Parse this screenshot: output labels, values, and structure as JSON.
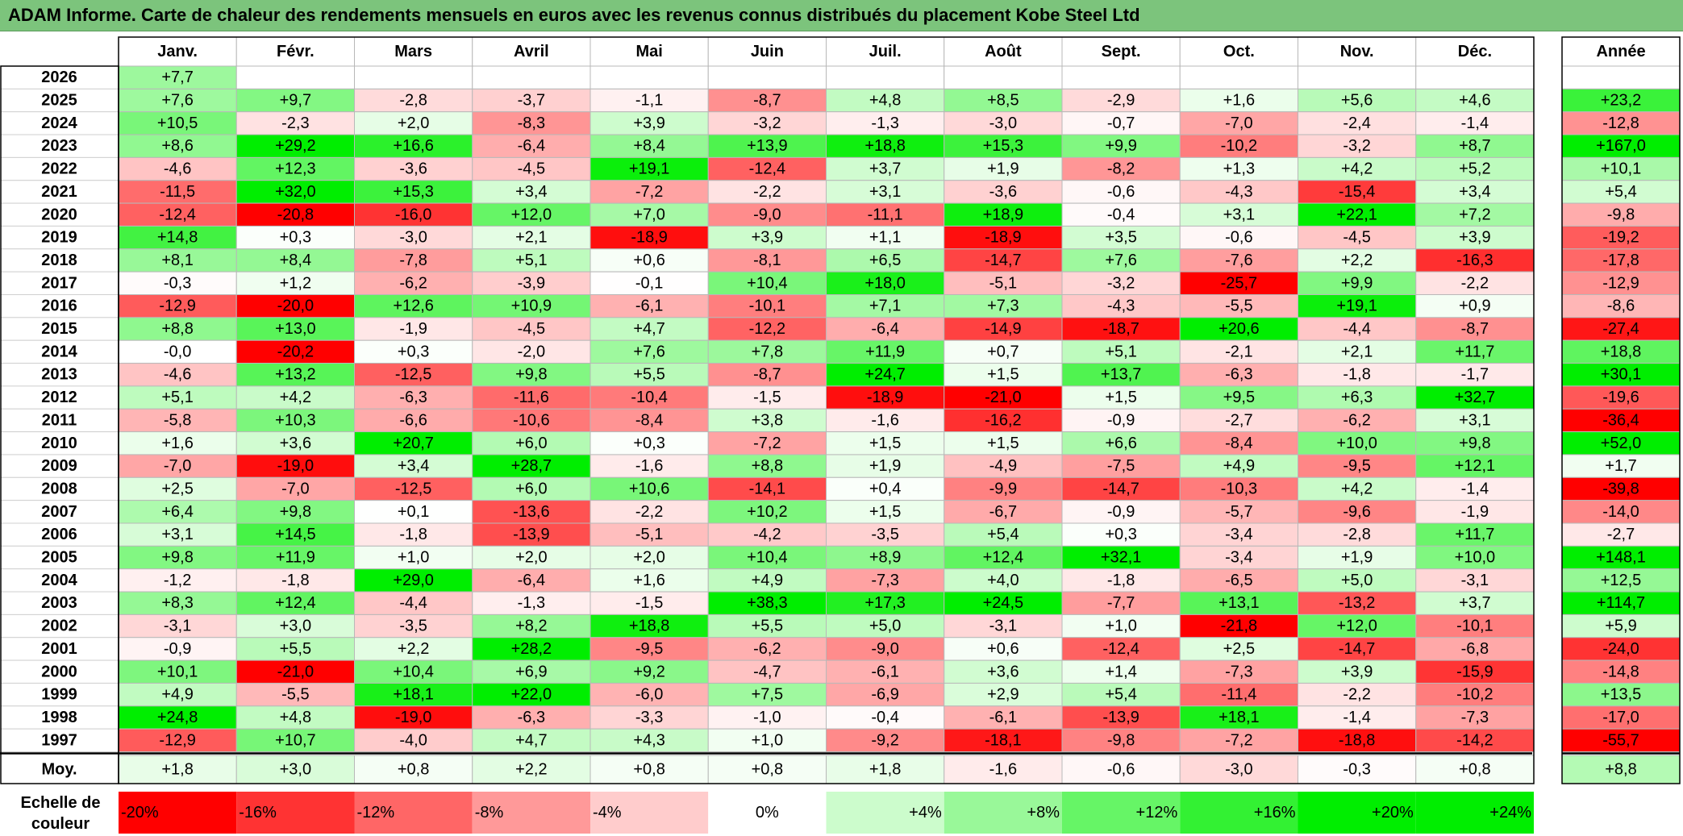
{
  "title": "ADAM Informe. Carte de chaleur des rendements mensuels en euros avec les revenus connus distribués du placement Kobe Steel Ltd",
  "chart_data": {
    "type": "heatmap",
    "title": "ADAM Informe. Carte de chaleur des rendements mensuels en euros avec les revenus connus distribués du placement Kobe Steel Ltd",
    "months": [
      "Janv.",
      "Févr.",
      "Mars",
      "Avril",
      "Mai",
      "Juin",
      "Juil.",
      "Août",
      "Sept.",
      "Oct.",
      "Nov.",
      "Déc."
    ],
    "year_header": "Année",
    "rows": [
      {
        "year": "2026",
        "values": [
          "+7,7",
          "",
          "",
          "",
          "",
          "",
          "",
          "",
          "",
          "",
          "",
          ""
        ],
        "annual": ""
      },
      {
        "year": "2025",
        "values": [
          "+7,6",
          "+9,7",
          "-2,8",
          "-3,7",
          "-1,1",
          "-8,7",
          "+4,8",
          "+8,5",
          "-2,9",
          "+1,6",
          "+5,6",
          "+4,6"
        ],
        "annual": "+23,2"
      },
      {
        "year": "2024",
        "values": [
          "+10,5",
          "-2,3",
          "+2,0",
          "-8,3",
          "+3,9",
          "-3,2",
          "-1,3",
          "-3,0",
          "-0,7",
          "-7,0",
          "-2,4",
          "-1,4"
        ],
        "annual": "-12,8"
      },
      {
        "year": "2023",
        "values": [
          "+8,6",
          "+29,2",
          "+16,6",
          "-6,4",
          "+8,4",
          "+13,9",
          "+18,8",
          "+15,3",
          "+9,9",
          "-10,2",
          "-3,2",
          "+8,7"
        ],
        "annual": "+167,0"
      },
      {
        "year": "2022",
        "values": [
          "-4,6",
          "+12,3",
          "-3,6",
          "-4,5",
          "+19,1",
          "-12,4",
          "+3,7",
          "+1,9",
          "-8,2",
          "+1,3",
          "+4,2",
          "+5,2"
        ],
        "annual": "+10,1"
      },
      {
        "year": "2021",
        "values": [
          "-11,5",
          "+32,0",
          "+15,3",
          "+3,4",
          "-7,2",
          "-2,2",
          "+3,1",
          "-3,6",
          "-0,6",
          "-4,3",
          "-15,4",
          "+3,4"
        ],
        "annual": "+5,4"
      },
      {
        "year": "2020",
        "values": [
          "-12,4",
          "-20,8",
          "-16,0",
          "+12,0",
          "+7,0",
          "-9,0",
          "-11,1",
          "+18,9",
          "-0,4",
          "+3,1",
          "+22,1",
          "+7,2"
        ],
        "annual": "-9,8"
      },
      {
        "year": "2019",
        "values": [
          "+14,8",
          "+0,3",
          "-3,0",
          "+2,1",
          "-18,9",
          "+3,9",
          "+1,1",
          "-18,9",
          "+3,5",
          "-0,6",
          "-4,5",
          "+3,9"
        ],
        "annual": "-19,2"
      },
      {
        "year": "2018",
        "values": [
          "+8,1",
          "+8,4",
          "-7,8",
          "+5,1",
          "+0,6",
          "-8,1",
          "+6,5",
          "-14,7",
          "+7,6",
          "-7,6",
          "+2,2",
          "-16,3"
        ],
        "annual": "-17,8"
      },
      {
        "year": "2017",
        "values": [
          "-0,3",
          "+1,2",
          "-6,2",
          "-3,9",
          "-0,1",
          "+10,4",
          "+18,0",
          "-5,1",
          "-3,2",
          "-25,7",
          "+9,9",
          "-2,2"
        ],
        "annual": "-12,9"
      },
      {
        "year": "2016",
        "values": [
          "-12,9",
          "-20,0",
          "+12,6",
          "+10,9",
          "-6,1",
          "-10,1",
          "+7,1",
          "+7,3",
          "-4,3",
          "-5,5",
          "+19,1",
          "+0,9"
        ],
        "annual": "-8,6"
      },
      {
        "year": "2015",
        "values": [
          "+8,8",
          "+13,0",
          "-1,9",
          "-4,5",
          "+4,7",
          "-12,2",
          "-6,4",
          "-14,9",
          "-18,7",
          "+20,6",
          "-4,4",
          "-8,7"
        ],
        "annual": "-27,4"
      },
      {
        "year": "2014",
        "values": [
          "-0,0",
          "-20,2",
          "+0,3",
          "-2,0",
          "+7,6",
          "+7,8",
          "+11,9",
          "+0,7",
          "+5,1",
          "-2,1",
          "+2,1",
          "+11,7"
        ],
        "annual": "+18,8"
      },
      {
        "year": "2013",
        "values": [
          "-4,6",
          "+13,2",
          "-12,5",
          "+9,8",
          "+5,5",
          "-8,7",
          "+24,7",
          "+1,5",
          "+13,7",
          "-6,3",
          "-1,8",
          "-1,7"
        ],
        "annual": "+30,1"
      },
      {
        "year": "2012",
        "values": [
          "+5,1",
          "+4,2",
          "-6,3",
          "-11,6",
          "-10,4",
          "-1,5",
          "-18,9",
          "-21,0",
          "+1,5",
          "+9,5",
          "+6,3",
          "+32,7"
        ],
        "annual": "-19,6"
      },
      {
        "year": "2011",
        "values": [
          "-5,8",
          "+10,3",
          "-6,6",
          "-10,6",
          "-8,4",
          "+3,8",
          "-1,6",
          "-16,2",
          "-0,9",
          "-2,7",
          "-6,2",
          "+3,1"
        ],
        "annual": "-36,4"
      },
      {
        "year": "2010",
        "values": [
          "+1,6",
          "+3,6",
          "+20,7",
          "+6,0",
          "+0,3",
          "-7,2",
          "+1,5",
          "+1,5",
          "+6,6",
          "-8,4",
          "+10,0",
          "+9,8"
        ],
        "annual": "+52,0"
      },
      {
        "year": "2009",
        "values": [
          "-7,0",
          "-19,0",
          "+3,4",
          "+28,7",
          "-1,6",
          "+8,8",
          "+1,9",
          "-4,9",
          "-7,5",
          "+4,9",
          "-9,5",
          "+12,1"
        ],
        "annual": "+1,7"
      },
      {
        "year": "2008",
        "values": [
          "+2,5",
          "-7,0",
          "-12,5",
          "+6,0",
          "+10,6",
          "-14,1",
          "+0,4",
          "-9,9",
          "-14,7",
          "-10,3",
          "+4,2",
          "-1,4"
        ],
        "annual": "-39,8"
      },
      {
        "year": "2007",
        "values": [
          "+6,4",
          "+9,8",
          "+0,1",
          "-13,6",
          "-2,2",
          "+10,2",
          "+1,5",
          "-6,7",
          "-0,9",
          "-5,7",
          "-9,6",
          "-1,9"
        ],
        "annual": "-14,0"
      },
      {
        "year": "2006",
        "values": [
          "+3,1",
          "+14,5",
          "-1,8",
          "-13,9",
          "-5,1",
          "-4,2",
          "-3,5",
          "+5,4",
          "+0,3",
          "-3,4",
          "-2,8",
          "+11,7"
        ],
        "annual": "-2,7"
      },
      {
        "year": "2005",
        "values": [
          "+9,8",
          "+11,9",
          "+1,0",
          "+2,0",
          "+2,0",
          "+10,4",
          "+8,9",
          "+12,4",
          "+32,1",
          "-3,4",
          "+1,9",
          "+10,0"
        ],
        "annual": "+148,1"
      },
      {
        "year": "2004",
        "values": [
          "-1,2",
          "-1,8",
          "+29,0",
          "-6,4",
          "+1,6",
          "+4,9",
          "-7,3",
          "+4,0",
          "-1,8",
          "-6,5",
          "+5,0",
          "-3,1"
        ],
        "annual": "+12,5"
      },
      {
        "year": "2003",
        "values": [
          "+8,3",
          "+12,4",
          "-4,4",
          "-1,3",
          "-1,5",
          "+38,3",
          "+17,3",
          "+24,5",
          "-7,7",
          "+13,1",
          "-13,2",
          "+3,7"
        ],
        "annual": "+114,7"
      },
      {
        "year": "2002",
        "values": [
          "-3,1",
          "+3,0",
          "-3,5",
          "+8,2",
          "+18,8",
          "+5,5",
          "+5,0",
          "-3,1",
          "+1,0",
          "-21,8",
          "+12,0",
          "-10,1"
        ],
        "annual": "+5,9"
      },
      {
        "year": "2001",
        "values": [
          "-0,9",
          "+5,5",
          "+2,2",
          "+28,2",
          "-9,5",
          "-6,2",
          "-9,0",
          "+0,6",
          "-12,4",
          "+2,5",
          "-14,7",
          "-6,8"
        ],
        "annual": "-24,0"
      },
      {
        "year": "2000",
        "values": [
          "+10,1",
          "-21,0",
          "+10,4",
          "+6,9",
          "+9,2",
          "-4,7",
          "-6,1",
          "+3,6",
          "+1,4",
          "-7,3",
          "+3,9",
          "-15,9"
        ],
        "annual": "-14,8"
      },
      {
        "year": "1999",
        "values": [
          "+4,9",
          "-5,5",
          "+18,1",
          "+22,0",
          "-6,0",
          "+7,5",
          "-6,9",
          "+2,9",
          "+5,4",
          "-11,4",
          "-2,2",
          "-10,2"
        ],
        "annual": "+13,5"
      },
      {
        "year": "1998",
        "values": [
          "+24,8",
          "+4,8",
          "-19,0",
          "-6,3",
          "-3,3",
          "-1,0",
          "-0,4",
          "-6,1",
          "-13,9",
          "+18,1",
          "-1,4",
          "-7,3"
        ],
        "annual": "-17,0"
      },
      {
        "year": "1997",
        "values": [
          "-12,9",
          "+10,7",
          "-4,0",
          "+4,7",
          "+4,3",
          "+1,0",
          "-9,2",
          "-18,1",
          "-9,8",
          "-7,2",
          "-18,8",
          "-14,2"
        ],
        "annual": "-55,7"
      }
    ],
    "average": {
      "label": "Moy.",
      "values": [
        "+1,8",
        "+3,0",
        "+0,8",
        "+2,2",
        "+0,8",
        "+0,8",
        "+1,8",
        "-1,6",
        "-0,6",
        "-3,0",
        "-0,3",
        "+0,8"
      ],
      "annual": "+8,8"
    },
    "scale": {
      "label_line1": "Echelle de",
      "label_line2": "couleur",
      "stops": [
        "-20%",
        "-16%",
        "-12%",
        "-8%",
        "-4%",
        "0%",
        "+4%",
        "+8%",
        "+12%",
        "+16%",
        "+20%",
        "+24%"
      ],
      "stop_values": [
        -20,
        -16,
        -12,
        -8,
        -4,
        0,
        4,
        8,
        12,
        16,
        20,
        24
      ]
    },
    "colors": {
      "negative_max": "#ff0000",
      "neutral": "#ffffff",
      "positive_max": "#00ee00",
      "title_bar": "#7cc47c"
    }
  }
}
